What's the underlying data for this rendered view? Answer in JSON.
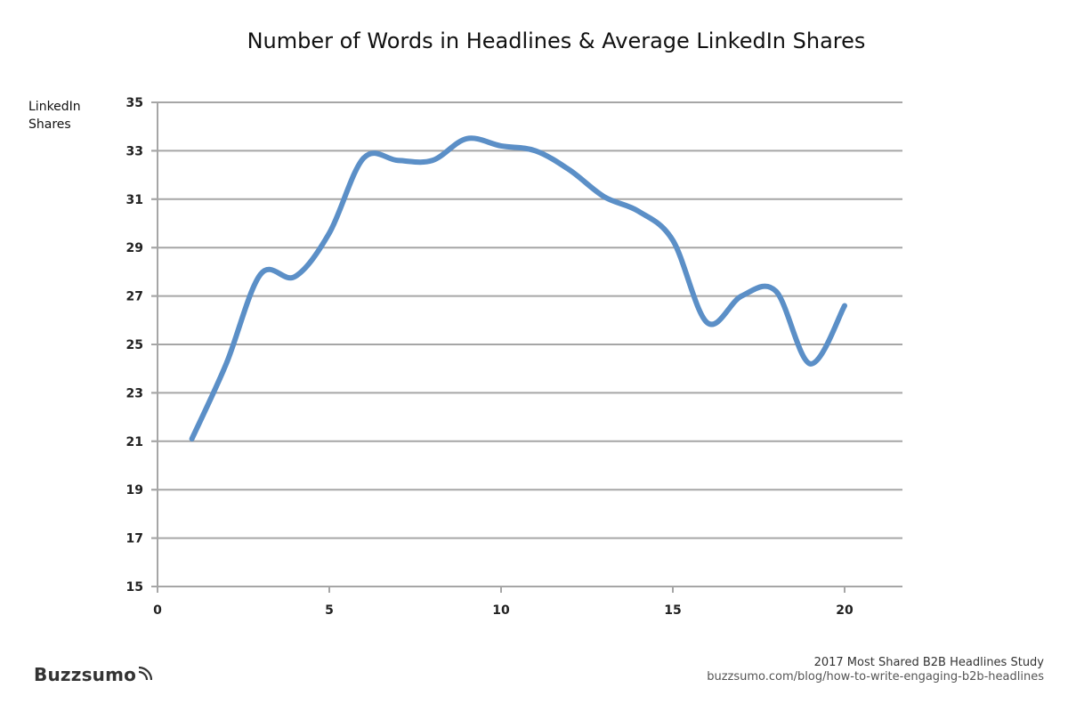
{
  "header": {
    "title": "Number of Words in Headlines & Average LinkedIn Shares"
  },
  "axes": {
    "y_label_line1": "LinkedIn",
    "y_label_line2": "Shares",
    "y_ticks": [
      "35",
      "33",
      "31",
      "29",
      "27",
      "25",
      "23",
      "21",
      "19",
      "17",
      "15"
    ],
    "x_ticks": [
      "0",
      "5",
      "10",
      "15",
      "20"
    ]
  },
  "footer": {
    "brand": "Buzzsumo",
    "study": "2017 Most Shared B2B Headlines Study",
    "url": "buzzsumo.com/blog/how-to-write-engaging-b2b-headlines"
  },
  "colors": {
    "line": "#5B8FC7",
    "grid": "#A6A6A6",
    "axis": "#A6A6A6"
  },
  "chart_data": {
    "type": "line",
    "title": "Number of Words in Headlines & Average LinkedIn Shares",
    "xlabel": "",
    "ylabel": "LinkedIn Shares",
    "x": [
      1,
      2,
      3,
      4,
      5,
      6,
      7,
      8,
      9,
      10,
      11,
      12,
      13,
      14,
      15,
      16,
      17,
      18,
      19,
      20
    ],
    "series": [
      {
        "name": "Average LinkedIn Shares",
        "values": [
          21.1,
          24.2,
          27.9,
          27.8,
          29.6,
          32.7,
          32.6,
          32.6,
          33.5,
          33.2,
          33.0,
          32.2,
          31.1,
          30.5,
          29.3,
          25.9,
          27.0,
          27.2,
          24.2,
          26.6
        ]
      }
    ],
    "xlim": [
      0,
      22
    ],
    "ylim": [
      15,
      35
    ],
    "x_ticks": [
      0,
      5,
      10,
      15,
      20
    ],
    "y_ticks": [
      15,
      17,
      19,
      21,
      23,
      25,
      27,
      29,
      31,
      33,
      35
    ],
    "grid": "horizontal",
    "smoothed": true,
    "legend": "none",
    "source": "2017 Most Shared B2B Headlines Study — buzzsumo.com/blog/how-to-write-engaging-b2b-headlines"
  }
}
